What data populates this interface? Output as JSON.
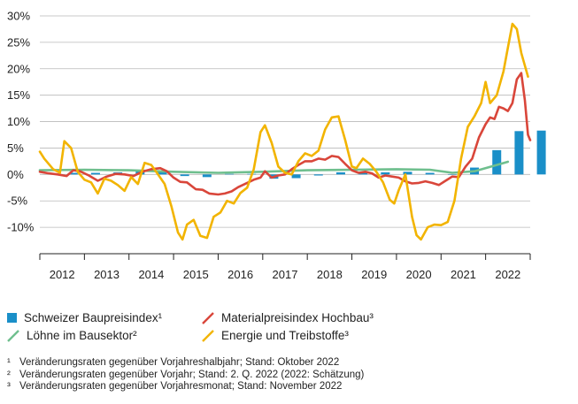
{
  "chart_data": {
    "type": "line",
    "title": "",
    "ylim": [
      -15,
      30
    ],
    "yticks": [
      30,
      25,
      20,
      15,
      10,
      5,
      0,
      -5,
      -10
    ],
    "ytick_labels": [
      "30%",
      "25%",
      "20%",
      "15%",
      "10%",
      "5%",
      "0%",
      "-5%",
      "-10%"
    ],
    "xlim": [
      2011.5,
      2022.5
    ],
    "x_labels": [
      "2012",
      "2013",
      "2014",
      "2015",
      "2016",
      "2017",
      "2018",
      "2019",
      "2020",
      "2021",
      "2022"
    ],
    "grid": "horizontal",
    "legend_position": "bottom",
    "series": [
      {
        "name": "Schweizer Baupreisindex¹",
        "kind": "bar",
        "color": "#1a8fc8",
        "points": [
          [
            2012.25,
            0.3
          ],
          [
            2012.75,
            0.3
          ],
          [
            2013.25,
            0.4
          ],
          [
            2013.75,
            0.6
          ],
          [
            2014.25,
            0.4
          ],
          [
            2014.75,
            -0.3
          ],
          [
            2015.25,
            -0.5
          ],
          [
            2015.75,
            0.1
          ],
          [
            2016.25,
            0.1
          ],
          [
            2016.75,
            -0.8
          ],
          [
            2017.25,
            -0.7
          ],
          [
            2017.75,
            -0.2
          ],
          [
            2018.25,
            0.4
          ],
          [
            2018.75,
            0.4
          ],
          [
            2019.25,
            0.4
          ],
          [
            2019.75,
            0.5
          ],
          [
            2020.25,
            0.3
          ],
          [
            2020.75,
            0.0
          ],
          [
            2021.25,
            1.3
          ],
          [
            2021.75,
            4.6
          ],
          [
            2022.25,
            8.2
          ],
          [
            2022.75,
            8.3
          ]
        ]
      },
      {
        "name": "Materialpreisindex Hochbau³",
        "kind": "line",
        "color": "#d9463a",
        "points": [
          [
            2011.5,
            0.5
          ],
          [
            2011.7,
            0.2
          ],
          [
            2011.9,
            0.0
          ],
          [
            2012.1,
            -0.3
          ],
          [
            2012.25,
            0.8
          ],
          [
            2012.4,
            0.6
          ],
          [
            2012.6,
            -0.2
          ],
          [
            2012.8,
            -1.2
          ],
          [
            2013.0,
            -0.4
          ],
          [
            2013.2,
            0.1
          ],
          [
            2013.4,
            0.0
          ],
          [
            2013.6,
            -0.3
          ],
          [
            2013.8,
            0.5
          ],
          [
            2014.0,
            1.0
          ],
          [
            2014.2,
            1.2
          ],
          [
            2014.35,
            0.6
          ],
          [
            2014.5,
            -0.6
          ],
          [
            2014.65,
            -1.4
          ],
          [
            2014.8,
            -1.5
          ],
          [
            2015.0,
            -2.8
          ],
          [
            2015.15,
            -2.9
          ],
          [
            2015.3,
            -3.6
          ],
          [
            2015.5,
            -3.8
          ],
          [
            2015.65,
            -3.6
          ],
          [
            2015.8,
            -3.2
          ],
          [
            2015.95,
            -2.4
          ],
          [
            2016.15,
            -1.6
          ],
          [
            2016.3,
            -1.0
          ],
          [
            2016.45,
            -0.6
          ],
          [
            2016.55,
            0.6
          ],
          [
            2016.7,
            -0.6
          ],
          [
            2016.85,
            -0.2
          ],
          [
            2017.0,
            0.0
          ],
          [
            2017.15,
            1.0
          ],
          [
            2017.3,
            1.8
          ],
          [
            2017.45,
            2.5
          ],
          [
            2017.6,
            2.5
          ],
          [
            2017.75,
            3.0
          ],
          [
            2017.9,
            2.8
          ],
          [
            2018.05,
            3.5
          ],
          [
            2018.2,
            3.3
          ],
          [
            2018.35,
            2.0
          ],
          [
            2018.5,
            0.8
          ],
          [
            2018.65,
            0.3
          ],
          [
            2018.8,
            0.5
          ],
          [
            2018.95,
            0.2
          ],
          [
            2019.1,
            -0.6
          ],
          [
            2019.25,
            -0.2
          ],
          [
            2019.4,
            -0.4
          ],
          [
            2019.55,
            -0.6
          ],
          [
            2019.7,
            -1.3
          ],
          [
            2019.85,
            -1.7
          ],
          [
            2020.0,
            -1.6
          ],
          [
            2020.15,
            -1.3
          ],
          [
            2020.3,
            -1.6
          ],
          [
            2020.45,
            -2.0
          ],
          [
            2020.6,
            -1.2
          ],
          [
            2020.75,
            -0.4
          ],
          [
            2020.9,
            -0.5
          ],
          [
            2021.05,
            1.5
          ],
          [
            2021.2,
            3.0
          ],
          [
            2021.35,
            7.0
          ],
          [
            2021.5,
            9.5
          ],
          [
            2021.6,
            10.8
          ],
          [
            2021.7,
            10.5
          ],
          [
            2021.8,
            12.8
          ],
          [
            2021.9,
            12.5
          ],
          [
            2022.0,
            12.0
          ],
          [
            2022.1,
            13.5
          ],
          [
            2022.2,
            18.0
          ],
          [
            2022.3,
            19.2
          ],
          [
            2022.38,
            14.0
          ],
          [
            2022.45,
            7.5
          ],
          [
            2022.5,
            6.5
          ]
        ]
      },
      {
        "name": "Löhne im Bausektor²",
        "kind": "line",
        "color": "#6fbf8e",
        "points": [
          [
            2011.5,
            0.8
          ],
          [
            2012.5,
            0.9
          ],
          [
            2013.5,
            0.8
          ],
          [
            2014.5,
            0.5
          ],
          [
            2015.5,
            0.3
          ],
          [
            2016.5,
            0.5
          ],
          [
            2017.5,
            0.8
          ],
          [
            2018.5,
            0.9
          ],
          [
            2019.5,
            1.0
          ],
          [
            2020.25,
            0.9
          ],
          [
            2020.75,
            0.3
          ],
          [
            2021.25,
            0.6
          ],
          [
            2021.75,
            1.8
          ],
          [
            2022.0,
            2.4
          ]
        ]
      },
      {
        "name": "Energie und Treibstoffe³",
        "kind": "line",
        "color": "#f2b400",
        "points": [
          [
            2011.5,
            4.3
          ],
          [
            2011.6,
            3.0
          ],
          [
            2011.8,
            1.0
          ],
          [
            2011.95,
            0.3
          ],
          [
            2012.05,
            6.3
          ],
          [
            2012.2,
            5.0
          ],
          [
            2012.35,
            0.5
          ],
          [
            2012.5,
            -1.0
          ],
          [
            2012.65,
            -1.5
          ],
          [
            2012.8,
            -3.6
          ],
          [
            2012.95,
            -0.8
          ],
          [
            2013.1,
            -1.2
          ],
          [
            2013.25,
            -2.0
          ],
          [
            2013.4,
            -3.1
          ],
          [
            2013.55,
            -0.5
          ],
          [
            2013.7,
            -1.8
          ],
          [
            2013.85,
            2.2
          ],
          [
            2014.0,
            1.8
          ],
          [
            2014.15,
            0.0
          ],
          [
            2014.3,
            -1.8
          ],
          [
            2014.45,
            -6.0
          ],
          [
            2014.6,
            -11.0
          ],
          [
            2014.7,
            -12.3
          ],
          [
            2014.8,
            -9.5
          ],
          [
            2014.95,
            -8.6
          ],
          [
            2015.1,
            -11.6
          ],
          [
            2015.25,
            -12.0
          ],
          [
            2015.4,
            -8.0
          ],
          [
            2015.55,
            -7.2
          ],
          [
            2015.7,
            -5.0
          ],
          [
            2015.85,
            -5.5
          ],
          [
            2016.0,
            -3.5
          ],
          [
            2016.15,
            -2.5
          ],
          [
            2016.3,
            1.0
          ],
          [
            2016.45,
            8.0
          ],
          [
            2016.55,
            9.3
          ],
          [
            2016.7,
            6.0
          ],
          [
            2016.85,
            1.5
          ],
          [
            2017.0,
            0.3
          ],
          [
            2017.15,
            0.0
          ],
          [
            2017.3,
            2.5
          ],
          [
            2017.45,
            4.0
          ],
          [
            2017.6,
            3.5
          ],
          [
            2017.75,
            4.5
          ],
          [
            2017.9,
            8.5
          ],
          [
            2018.05,
            10.8
          ],
          [
            2018.2,
            11.0
          ],
          [
            2018.35,
            6.5
          ],
          [
            2018.5,
            1.5
          ],
          [
            2018.6,
            1.2
          ],
          [
            2018.75,
            3.0
          ],
          [
            2018.9,
            2.0
          ],
          [
            2019.05,
            0.5
          ],
          [
            2019.2,
            -1.5
          ],
          [
            2019.35,
            -4.8
          ],
          [
            2019.45,
            -5.5
          ],
          [
            2019.55,
            -3.0
          ],
          [
            2019.7,
            0.0
          ],
          [
            2019.85,
            -8.0
          ],
          [
            2019.95,
            -11.5
          ],
          [
            2020.05,
            -12.3
          ],
          [
            2020.2,
            -10.0
          ],
          [
            2020.35,
            -9.5
          ],
          [
            2020.5,
            -9.6
          ],
          [
            2020.65,
            -9.0
          ],
          [
            2020.8,
            -5.0
          ],
          [
            2020.95,
            3.0
          ],
          [
            2021.1,
            9.0
          ],
          [
            2021.25,
            11.0
          ],
          [
            2021.4,
            13.5
          ],
          [
            2021.5,
            17.5
          ],
          [
            2021.6,
            13.5
          ],
          [
            2021.75,
            15.0
          ],
          [
            2021.9,
            19.5
          ],
          [
            2022.0,
            24.0
          ],
          [
            2022.1,
            28.5
          ],
          [
            2022.2,
            27.5
          ],
          [
            2022.3,
            23.0
          ],
          [
            2022.4,
            20.0
          ],
          [
            2022.45,
            18.5
          ]
        ]
      }
    ]
  },
  "legend": {
    "bar_label": "Schweizer Baupreisindex¹",
    "material_label": "Materialpreisindex Hochbau³",
    "wages_label": "Löhne im Bausektor²",
    "energy_label": "Energie und Treibstoffe³"
  },
  "footnotes": [
    {
      "mark": "¹",
      "text": "Veränderungsraten gegenüber Vorjahreshalbjahr; Stand: Oktober 2022"
    },
    {
      "mark": "²",
      "text": "Veränderungsraten gegenüber Vorjahr; Stand: 2. Q. 2022 (2022: Schätzung)"
    },
    {
      "mark": "³",
      "text": "Veränderungsraten gegenüber Vorjahresmonat; Stand: November 2022"
    }
  ]
}
